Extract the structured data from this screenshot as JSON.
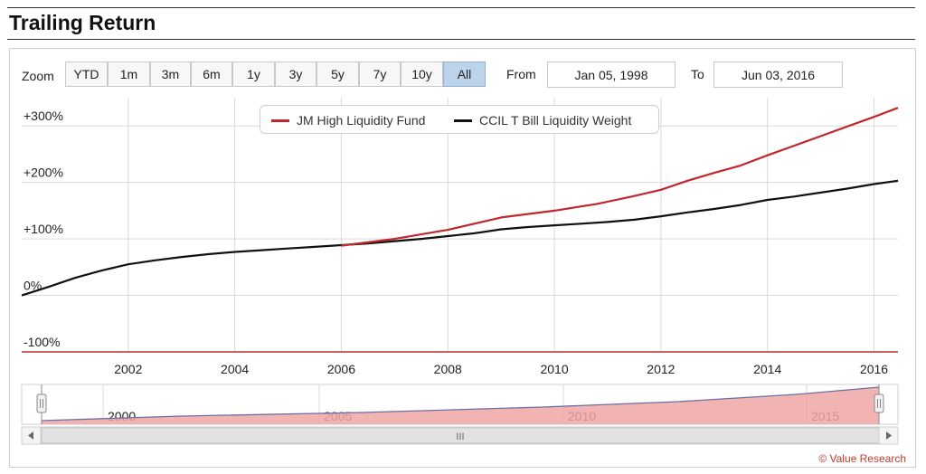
{
  "header": {
    "title": "Trailing Return"
  },
  "zoom": {
    "label": "Zoom",
    "buttons": [
      "YTD",
      "1m",
      "3m",
      "6m",
      "1y",
      "3y",
      "5y",
      "7y",
      "10y",
      "All"
    ],
    "active": "All"
  },
  "range": {
    "from_label": "From",
    "from_value": "Jan 05, 1998",
    "to_label": "To",
    "to_value": "Jun 03, 2016"
  },
  "chart_data": {
    "type": "line",
    "xlabel": "",
    "ylabel": "",
    "xlim": [
      2000.0,
      2016.45
    ],
    "ylim": [
      -100,
      350
    ],
    "y_ticks": [
      -100,
      0,
      100,
      200,
      300
    ],
    "y_tick_labels": [
      "-100%",
      "0%",
      "+100%",
      "+200%",
      "+300%"
    ],
    "x_ticks": [
      2002,
      2004,
      2006,
      2008,
      2010,
      2012,
      2014,
      2016
    ],
    "grid": true,
    "legend_position": "top-center",
    "series": [
      {
        "name": "JM High Liquidity Fund",
        "color": "#c0282d",
        "x": [
          2006.0,
          2007.0,
          2008.0,
          2009.0,
          2010.0,
          2010.8,
          2011.5,
          2012.0,
          2012.5,
          2013.0,
          2013.5,
          2014.0,
          2014.5,
          2015.0,
          2015.5,
          2016.0,
          2016.45
        ],
        "y": [
          88,
          100,
          116,
          138,
          150,
          162,
          176,
          187,
          203,
          217,
          230,
          248,
          265,
          282,
          299,
          316,
          332
        ]
      },
      {
        "name": "CCIL T Bill Liquidity Weight",
        "color": "#111111",
        "x": [
          2000.0,
          2000.5,
          2001.0,
          2001.5,
          2002.0,
          2002.5,
          2003.0,
          2003.5,
          2004.0,
          2004.5,
          2005.0,
          2005.5,
          2006.0,
          2006.5,
          2007.0,
          2007.5,
          2008.0,
          2008.5,
          2009.0,
          2009.5,
          2010.0,
          2010.5,
          2011.0,
          2011.5,
          2012.0,
          2012.5,
          2013.0,
          2013.5,
          2014.0,
          2014.5,
          2015.0,
          2015.5,
          2016.0,
          2016.45
        ],
        "y": [
          0,
          15,
          31,
          44,
          55,
          62,
          68,
          73,
          77,
          80,
          83,
          86,
          89,
          92,
          96,
          100,
          105,
          110,
          117,
          121,
          124,
          127,
          130,
          134,
          140,
          147,
          153,
          160,
          169,
          175,
          182,
          189,
          197,
          203
        ]
      }
    ]
  },
  "navigator": {
    "labels": [
      "2000",
      "2005",
      "2010",
      "2015"
    ],
    "fill_color": "#f0a6a6",
    "line_color": "#6a6fa8",
    "scroll_grip": "III"
  },
  "footer": {
    "copyright": "© Value Research"
  }
}
